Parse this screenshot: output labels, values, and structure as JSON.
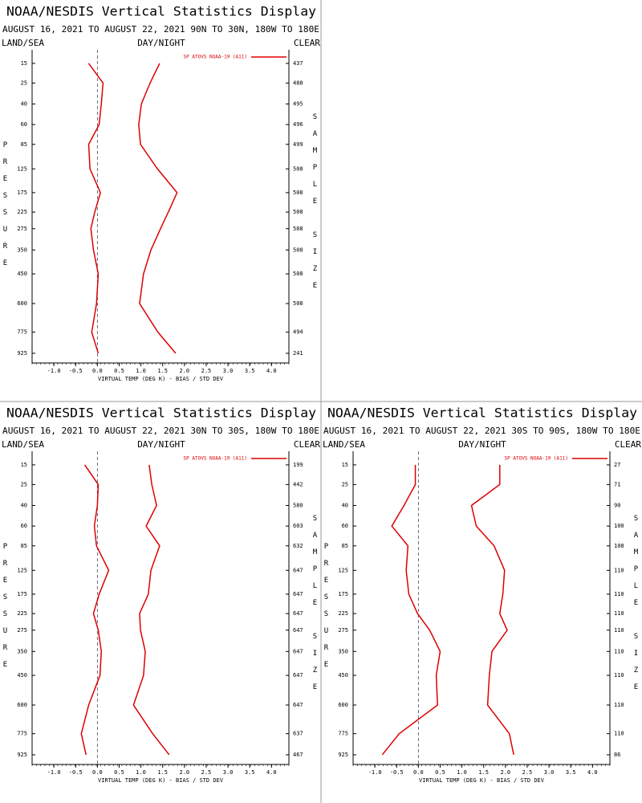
{
  "chart_data": [
    {
      "type": "profile",
      "title": "NOAA/NESDIS Vertical Statistics Display",
      "subtitle": "AUGUST 16, 2021 TO AUGUST 22, 2021 90N TO 30N, 180W TO 180E",
      "left_label": "LAND/SEA",
      "center_label": "DAY/NIGHT",
      "right_label": "CLEAR",
      "ylabel": "PRESSURE",
      "y2label": "SAMPLE SIZE",
      "xlabel": "VIRTUAL TEMP (DEG K) - BIAS / STD DEV",
      "y": [
        15,
        25,
        40,
        60,
        85,
        125,
        175,
        225,
        275,
        350,
        450,
        600,
        775,
        925
      ],
      "ylim": [
        10,
        1000
      ],
      "xlim": [
        -1.5,
        4.4
      ],
      "xticks": [
        {
          "value": -1,
          "label": "-1.0"
        },
        -0.5,
        {
          "value": 0,
          "label": "0.0"
        },
        0.5,
        {
          "value": 1,
          "label": "1.0"
        },
        1.5,
        {
          "value": 2,
          "label": "2.0"
        },
        2.5,
        {
          "value": 3,
          "label": "3.0"
        },
        3.5,
        {
          "value": 4,
          "label": "4.0"
        }
      ],
      "sample_size": [
        437,
        488,
        495,
        496,
        499,
        508,
        508,
        508,
        508,
        508,
        508,
        508,
        494,
        241
      ],
      "series": [
        {
          "name": "SP ATOVS NOAA-19 (A11)",
          "color": "#dd0000",
          "values": [
            -0.2,
            0.13,
            0.09,
            0.04,
            -0.2,
            -0.17,
            0.07,
            -0.06,
            -0.15,
            -0.09,
            0.02,
            -0.02,
            -0.13,
            0.02
          ],
          "std_dev": [
            1.43,
            1.21,
            1.01,
            0.95,
            0.99,
            1.38,
            1.83,
            1.63,
            1.45,
            1.23,
            1.06,
            0.97,
            1.39,
            1.8
          ]
        }
      ]
    },
    {
      "type": "profile",
      "title": "NOAA/NESDIS Vertical Statistics Display",
      "subtitle": "AUGUST 16, 2021 TO AUGUST 22, 2021 30N TO 30S, 180W TO 180E",
      "left_label": "LAND/SEA",
      "center_label": "DAY/NIGHT",
      "right_label": "CLEAR",
      "ylabel": "PRESSURE",
      "y2label": "SAMPLE SIZE",
      "xlabel": "VIRTUAL TEMP (DEG K) - BIAS / STD DEV",
      "y": [
        15,
        25,
        40,
        60,
        85,
        125,
        175,
        225,
        275,
        350,
        450,
        600,
        775,
        925
      ],
      "ylim": [
        10,
        1000
      ],
      "xlim": [
        -1.5,
        4.4
      ],
      "xticks": [
        {
          "value": -1,
          "label": "-1.0"
        },
        -0.5,
        {
          "value": 0,
          "label": "0.0"
        },
        0.5,
        {
          "value": 1,
          "label": "1.0"
        },
        1.5,
        {
          "value": 2,
          "label": "2.0"
        },
        2.5,
        {
          "value": 3,
          "label": "3.0"
        },
        3.5,
        {
          "value": 4,
          "label": "4.0"
        }
      ],
      "sample_size": [
        199,
        442,
        580,
        603,
        632,
        647,
        647,
        647,
        647,
        647,
        647,
        647,
        637,
        467
      ],
      "series": [
        {
          "name": "SP ATOVS NOAA-19 (A11)",
          "color": "#dd0000",
          "values": [
            -0.29,
            0.02,
            0,
            -0.07,
            -0.02,
            0.26,
            0.04,
            -0.09,
            0.02,
            0.09,
            0.06,
            -0.2,
            -0.37,
            -0.26
          ],
          "std_dev": [
            1.19,
            1.25,
            1.36,
            1.12,
            1.43,
            1.23,
            1.17,
            0.97,
            0.99,
            1.1,
            1.06,
            0.83,
            1.27,
            1.65
          ]
        }
      ]
    },
    {
      "type": "profile",
      "title": "NOAA/NESDIS Vertical Statistics Display",
      "subtitle": "AUGUST 16, 2021 TO AUGUST 22, 2021 30S TO 90S, 180W TO 180E",
      "left_label": "LAND/SEA",
      "center_label": "DAY/NIGHT",
      "right_label": "CLEAR",
      "ylabel": "PRESSURE",
      "y2label": "SAMPLE SIZE",
      "xlabel": "VIRTUAL TEMP (DEG K) - BIAS / STD DEV",
      "y": [
        15,
        25,
        40,
        60,
        85,
        125,
        175,
        225,
        275,
        350,
        450,
        600,
        775,
        925
      ],
      "ylim": [
        10,
        1000
      ],
      "xlim": [
        -1.5,
        4.4
      ],
      "xticks": [
        {
          "value": -1,
          "label": "-1.0"
        },
        -0.5,
        {
          "value": 0,
          "label": "0.0"
        },
        0.5,
        {
          "value": 1,
          "label": "1.0"
        },
        1.5,
        {
          "value": 2,
          "label": "2.0"
        },
        2.5,
        {
          "value": 3,
          "label": "3.0"
        },
        3.5,
        {
          "value": 4,
          "label": "4.0"
        }
      ],
      "sample_size": [
        27,
        71,
        90,
        100,
        108,
        110,
        110,
        110,
        110,
        110,
        110,
        110,
        110,
        86
      ],
      "series": [
        {
          "name": "SP ATOVS NOAA-19 (A11)",
          "color": "#dd0000",
          "values": [
            -0.07,
            -0.07,
            -0.33,
            -0.61,
            -0.24,
            -0.28,
            -0.22,
            -0.02,
            0.26,
            0.5,
            0.41,
            0.44,
            -0.44,
            -0.83
          ],
          "std_dev": [
            1.87,
            1.87,
            1.22,
            1.33,
            1.74,
            1.98,
            1.94,
            1.87,
            2.04,
            1.69,
            1.63,
            1.59,
            2.09,
            2.19
          ]
        }
      ]
    }
  ]
}
